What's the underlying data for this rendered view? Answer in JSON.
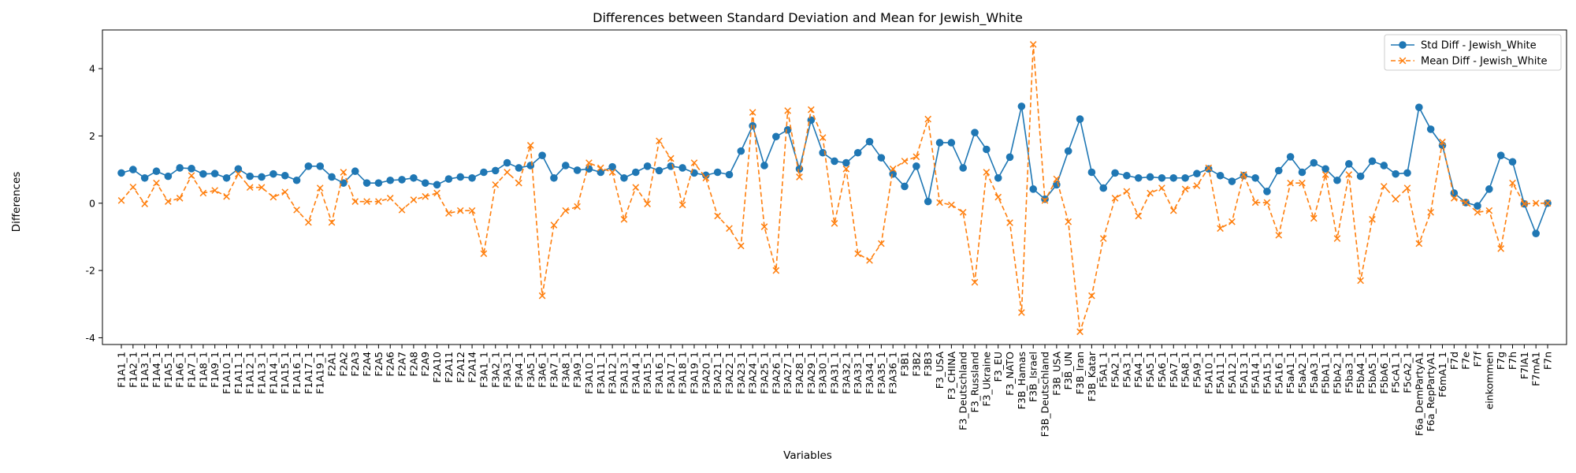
{
  "chart_data": {
    "type": "line",
    "title": "Differences between Standard Deviation and Mean for Jewish_White",
    "xlabel": "Variables",
    "ylabel": "Differences",
    "ylim": [
      -4.2,
      5.15
    ],
    "yticks": [
      -4,
      -2,
      0,
      2,
      4
    ],
    "grid": false,
    "legend_position": "top-right",
    "categories": [
      "F1A1_1",
      "F1A2_1",
      "F1A3_1",
      "F1A4_1",
      "F1A5_1",
      "F1A6_1",
      "F1A7_1",
      "F1A8_1",
      "F1A9_1",
      "F1A10_1",
      "F1A11_1",
      "F1A12_1",
      "F1A13_1",
      "F1A14_1",
      "F1A15_1",
      "F1A16_1",
      "F1A17_1",
      "F1A19_1",
      "F2A1",
      "F2A2",
      "F2A3",
      "F2A4",
      "F2A5",
      "F2A6",
      "F2A7",
      "F2A8",
      "F2A9",
      "F2A10",
      "F2A11",
      "F2A12",
      "F2A14",
      "F3A1_1",
      "F3A2_1",
      "F3A3_1",
      "F3A4_1",
      "F3A5_1",
      "F3A6_1",
      "F3A7_1",
      "F3A8_1",
      "F3A9_1",
      "F3A10_1",
      "F3A11_1",
      "F3A12_1",
      "F3A13_1",
      "F3A14_1",
      "F3A15_1",
      "F3A16_1",
      "F3A17_1",
      "F3A18_1",
      "F3A19_1",
      "F3A20_1",
      "F3A21_1",
      "F3A22_1",
      "F3A23_1",
      "F3A24_1",
      "F3A25_1",
      "F3A26_1",
      "F3A27_1",
      "F3A28_1",
      "F3A29_1",
      "F3A30_1",
      "F3A31_1",
      "F3A32_1",
      "F3A33_1",
      "F3A34_1",
      "F3A35_1",
      "F3A36_1",
      "F3B1",
      "F3B2",
      "F3B3",
      "F3_USA",
      "F3_CHINA",
      "F3_Deutschland",
      "F3_Russland",
      "F3_Ukraine",
      "F3_EU",
      "F3_NATO",
      "F3B_Hamas",
      "F3B_Israel",
      "F3B_Deutschland",
      "F3B_USA",
      "F3B_UN",
      "F3B_Iran",
      "F3B_Katar",
      "F5A1_1",
      "F5A2_1",
      "F5A3_1",
      "F5A4_1",
      "F5A5_1",
      "F5A6_1",
      "F5A7_1",
      "F5A8_1",
      "F5A9_1",
      "F5A10_1",
      "F5A11_1",
      "F5A12_1",
      "F5A13_1",
      "F5A14_1",
      "F5A15_1",
      "F5A16_1",
      "F5aA1_1",
      "F5aA2_1",
      "F5aA3_1",
      "F5bA1_1",
      "F5bA2_1",
      "F5ba3_1",
      "F5bA4_1",
      "F5bA5_1",
      "F5bA6_1",
      "F5cA1_1",
      "F5cA2_1",
      "F6a_DemPartyA1",
      "F6a_RepPartyA1",
      "F6mA1_1",
      "F7d",
      "F7e",
      "F7f",
      "einkommen",
      "F7g",
      "F7h",
      "F7lA1",
      "F7mA1",
      "F7n"
    ],
    "series": [
      {
        "name": "Std Diff - Jewish_White",
        "color": "#1f77b4",
        "marker": "circle",
        "line_style": "solid",
        "values": [
          0.9,
          1.0,
          0.75,
          0.95,
          0.8,
          1.05,
          1.03,
          0.87,
          0.88,
          0.75,
          1.02,
          0.8,
          0.78,
          0.87,
          0.82,
          0.68,
          1.1,
          1.1,
          0.78,
          0.6,
          0.95,
          0.6,
          0.6,
          0.68,
          0.7,
          0.75,
          0.6,
          0.55,
          0.72,
          0.78,
          0.75,
          0.92,
          0.97,
          1.2,
          1.05,
          1.12,
          1.42,
          0.75,
          1.12,
          0.98,
          1.02,
          0.92,
          1.08,
          0.75,
          0.92,
          1.1,
          0.97,
          1.1,
          1.05,
          0.9,
          0.83,
          0.92,
          0.85,
          1.55,
          2.3,
          1.12,
          1.98,
          2.18,
          1.02,
          2.47,
          1.5,
          1.25,
          1.2,
          1.5,
          1.83,
          1.35,
          0.87,
          0.5,
          1.1,
          0.05,
          1.8,
          1.8,
          1.05,
          2.1,
          1.6,
          0.75,
          1.37,
          2.88,
          0.42,
          0.12,
          0.55,
          1.55,
          2.5,
          0.92,
          0.45,
          0.9,
          0.82,
          0.75,
          0.78,
          0.75,
          0.75,
          0.75,
          0.88,
          1.02,
          0.82,
          0.65,
          0.82,
          0.75,
          0.35,
          0.97,
          1.38,
          0.92,
          1.2,
          1.02,
          0.68,
          1.17,
          0.8,
          1.25,
          1.12,
          0.87,
          0.9,
          2.85,
          2.2,
          1.72,
          0.3,
          0.02,
          -0.08,
          0.42,
          1.42,
          1.23,
          -0.02,
          -0.9,
          0.0
        ]
      },
      {
        "name": "Mean Diff - Jewish_White",
        "color": "#ff7f0e",
        "marker": "x",
        "line_style": "dashed",
        "values": [
          0.08,
          0.48,
          -0.02,
          0.6,
          0.05,
          0.15,
          0.82,
          0.3,
          0.38,
          0.2,
          0.87,
          0.47,
          0.47,
          0.18,
          0.33,
          -0.2,
          -0.57,
          0.45,
          -0.57,
          0.92,
          0.05,
          0.05,
          0.05,
          0.15,
          -0.2,
          0.1,
          0.2,
          0.3,
          -0.3,
          -0.22,
          -0.22,
          -1.5,
          0.55,
          0.92,
          0.6,
          1.72,
          -2.75,
          -0.65,
          -0.22,
          -0.1,
          1.2,
          1.05,
          0.92,
          -0.48,
          0.47,
          -0.02,
          1.85,
          1.33,
          -0.05,
          1.2,
          0.75,
          -0.38,
          -0.75,
          -1.27,
          2.7,
          -0.7,
          -2.0,
          2.75,
          0.78,
          2.78,
          1.95,
          -0.6,
          1.02,
          -1.5,
          -1.7,
          -1.2,
          1.02,
          1.25,
          1.38,
          2.5,
          0.02,
          -0.05,
          -0.27,
          -2.35,
          0.92,
          0.18,
          -0.58,
          -3.25,
          4.72,
          0.08,
          0.72,
          -0.55,
          -3.82,
          -2.75,
          -1.05,
          0.15,
          0.35,
          -0.38,
          0.3,
          0.45,
          -0.22,
          0.42,
          0.52,
          1.05,
          -0.75,
          -0.55,
          0.85,
          0.02,
          0.02,
          -0.95,
          0.6,
          0.6,
          -0.45,
          0.85,
          -1.05,
          0.85,
          -2.3,
          -0.48,
          0.5,
          0.12,
          0.45,
          -1.2,
          -0.27,
          1.82,
          0.15,
          0.02,
          -0.27,
          -0.22,
          -1.35,
          0.6,
          -0.02,
          0.0,
          0.0
        ]
      }
    ]
  }
}
